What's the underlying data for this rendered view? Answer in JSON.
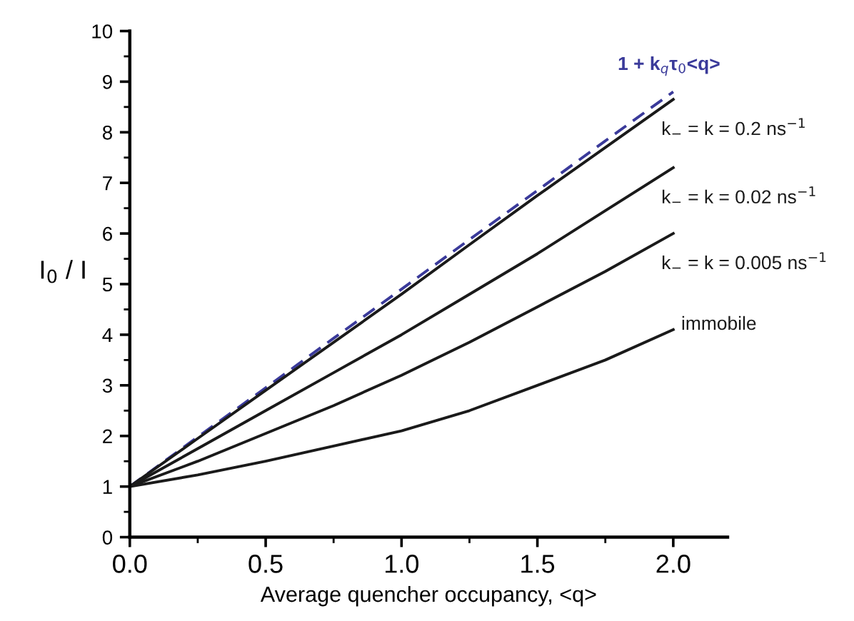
{
  "chart_data": {
    "type": "line",
    "xlabel": "Average quencher occupancy, <q>",
    "ylabel": "I$_{0}$ / I",
    "x": [
      0,
      0.25,
      0.5,
      0.75,
      1.0,
      1.25,
      1.5,
      1.75,
      2.0
    ],
    "series": [
      {
        "name": "1 + k$_{q}$τ$_{0}$<q>",
        "color": "#3a3a9a",
        "line_style": "dashed",
        "values": [
          1,
          1.98,
          2.95,
          3.93,
          4.9,
          5.88,
          6.85,
          7.83,
          8.8
        ]
      },
      {
        "name": "k$_{−}$ = k = 0.2 ns$^{−1}$",
        "color": "#1a1a1a",
        "line_style": "solid",
        "values": [
          1,
          1.95,
          2.9,
          3.85,
          4.8,
          5.78,
          6.75,
          7.7,
          8.65
        ]
      },
      {
        "name": "k$_{−}$ = k = 0.02 ns$^{−1}$",
        "color": "#1a1a1a",
        "line_style": "solid",
        "values": [
          1,
          1.75,
          2.5,
          3.25,
          4.0,
          4.8,
          5.6,
          6.45,
          7.3
        ]
      },
      {
        "name": "k$_{−}$ = k = 0.005 ns$^{−1}$",
        "color": "#1a1a1a",
        "line_style": "solid",
        "values": [
          1,
          1.5,
          2.05,
          2.6,
          3.2,
          3.85,
          4.55,
          5.25,
          6.0
        ]
      },
      {
        "name": "immobile",
        "color": "#1a1a1a",
        "line_style": "solid",
        "values": [
          1,
          1.23,
          1.5,
          1.8,
          2.1,
          2.5,
          3.0,
          3.5,
          4.1
        ]
      }
    ],
    "xlim": [
      0,
      2.2
    ],
    "ylim": [
      0,
      10
    ],
    "xticks": [
      {
        "value": 0,
        "label": "0.0"
      },
      0.5,
      {
        "value": 1,
        "label": "1.0"
      },
      1.5,
      {
        "value": 2,
        "label": "2.0"
      }
    ],
    "yticks": [
      0,
      1,
      2,
      3,
      4,
      5,
      6,
      7,
      8,
      9,
      10
    ]
  }
}
